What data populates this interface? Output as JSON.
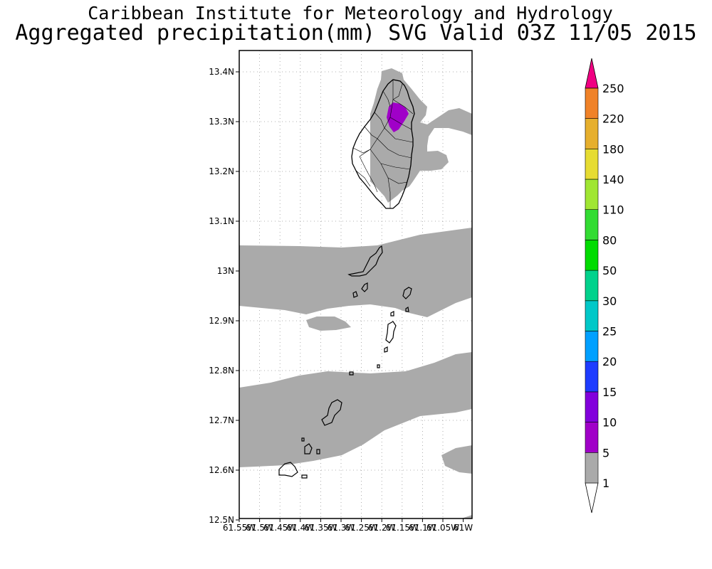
{
  "header": {
    "title": "Caribbean Institute for Meteorology and Hydrology",
    "subtitle": "Aggregated precipitation(mm) SVG Valid 03Z 11/05 2015"
  },
  "map": {
    "lat_ticks": [
      "13.4N",
      "13.3N",
      "13.2N",
      "13.1N",
      "13N",
      "12.9N",
      "12.8N",
      "12.7N",
      "12.6N",
      "12.5N"
    ],
    "lon_ticks": [
      "61.55W",
      "61.5W",
      "61.45W",
      "61.4W",
      "61.35W",
      "61.3W",
      "61.25W",
      "61.2W",
      "61.15W",
      "61.1W",
      "61.05W",
      "61W"
    ],
    "lat_range": [
      12.5,
      13.44
    ],
    "lon_range": [
      -61.55,
      -61.0
    ],
    "grid": true,
    "colors": {
      "land_outline": "#000000",
      "rain_1_5": "#aaaaaa",
      "rain_5_10": "#a000c8"
    }
  },
  "colorbar": {
    "levels": [
      "1",
      "5",
      "10",
      "15",
      "20",
      "25",
      "30",
      "50",
      "80",
      "110",
      "140",
      "180",
      "220",
      "250"
    ],
    "colors": [
      "#aaaaaa",
      "#a000c8",
      "#8200dc",
      "#1e3cff",
      "#00a0ff",
      "#00c8c8",
      "#00d28c",
      "#00dc00",
      "#32dc32",
      "#a0e632",
      "#e6dc32",
      "#e6af2d",
      "#f08228",
      "#fa3c3c"
    ],
    "low_color": "#ffffff",
    "high_color": "#f00082"
  }
}
